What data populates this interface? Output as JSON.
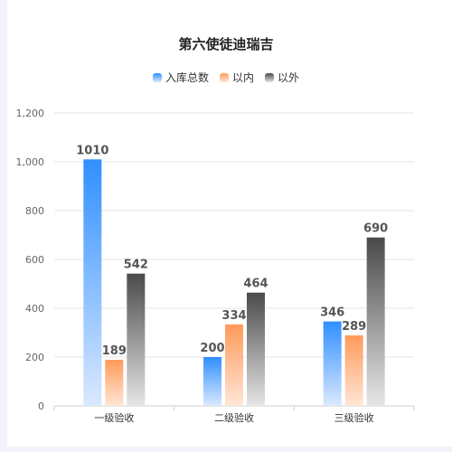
{
  "chart_data": {
    "type": "bar",
    "title": "第六使徒迪瑞吉",
    "categories": [
      "一级验收",
      "二级验收",
      "三级验收"
    ],
    "series": [
      {
        "name": "入库总数",
        "values": [
          1010,
          200,
          346
        ],
        "color": "#2f8fff",
        "color_end": "#dbe9ff"
      },
      {
        "name": "以内",
        "values": [
          189,
          334,
          289
        ],
        "color": "#ff9a5a",
        "color_end": "#ffe6d6"
      },
      {
        "name": "以外",
        "values": [
          542,
          464,
          690
        ],
        "color": "#4a4a4a",
        "color_end": "#e6e6e6"
      }
    ],
    "ylim": [
      0,
      1200
    ],
    "yticks": [
      "0",
      "200",
      "400",
      "600",
      "800",
      "1,000",
      "1,200"
    ],
    "ytick_values": [
      0,
      200,
      400,
      600,
      800,
      1000,
      1200
    ],
    "grid": true,
    "legend_position": "top-center",
    "data_labels": true
  }
}
